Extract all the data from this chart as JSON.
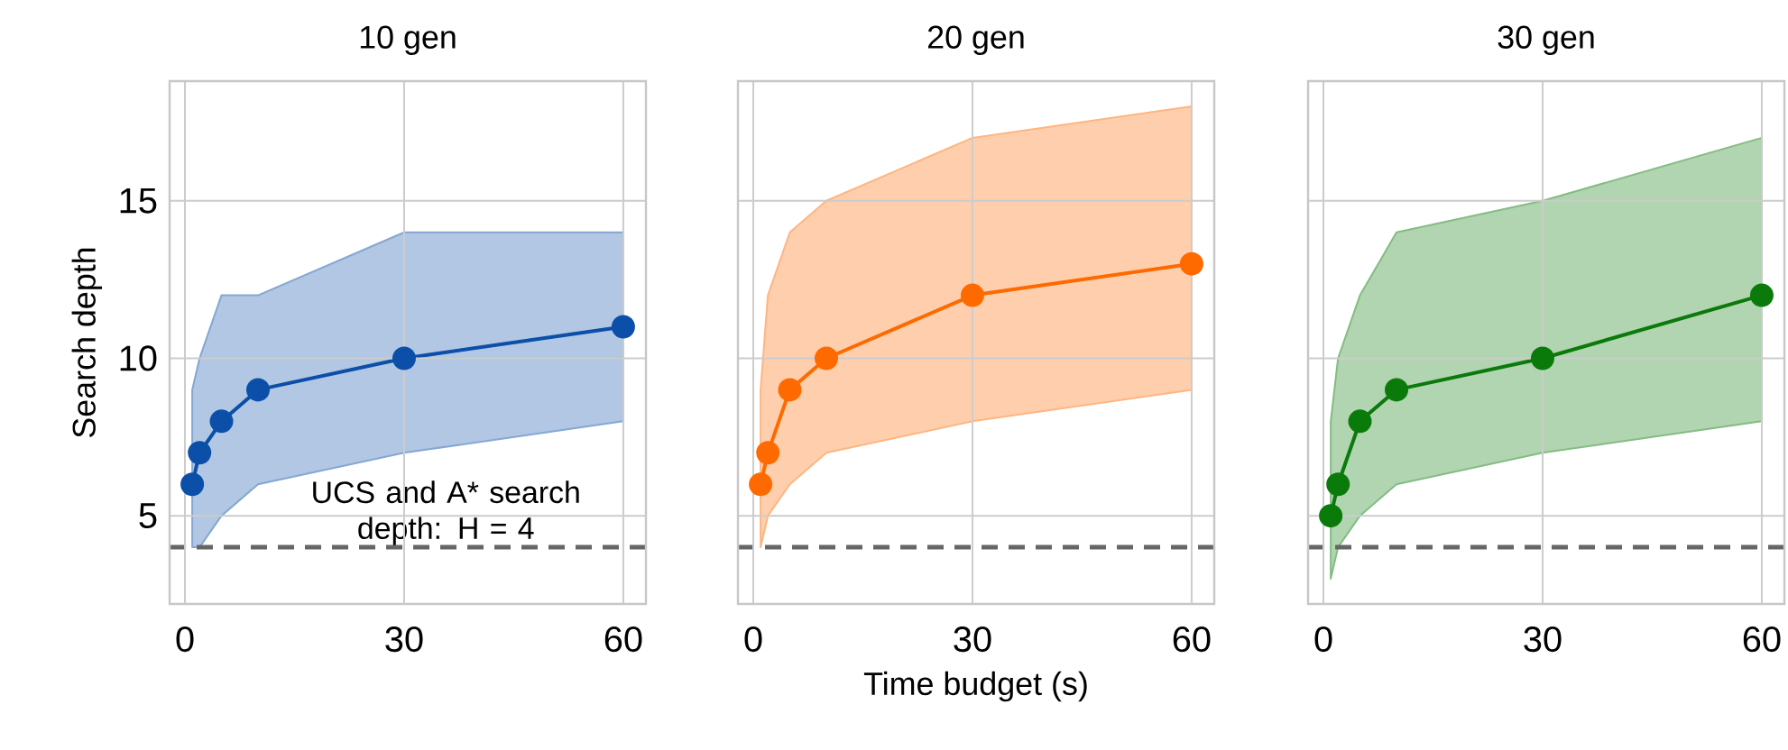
{
  "chart_data": [
    {
      "type": "line",
      "title": "10 gen",
      "ylabel": "Search depth",
      "x": [
        1,
        2,
        5,
        10,
        30,
        60
      ],
      "xlim": [
        -2.1,
        63.1
      ],
      "ylim": [
        2.2,
        18.8
      ],
      "xticks": [
        0,
        30,
        60
      ],
      "yticks": [
        5,
        10,
        15
      ],
      "grid": true,
      "marker": "circle",
      "series": [
        {
          "color": "#0b4fa8",
          "values": [
            6,
            7,
            8,
            9,
            10,
            11
          ],
          "lower": [
            4,
            4,
            5,
            6,
            7,
            8
          ],
          "upper": [
            9,
            10,
            12,
            12,
            14,
            14
          ]
        }
      ],
      "ref_lines": [
        {
          "axis": "y",
          "value": 4,
          "label": "UCS and A* search depth: H = 4",
          "color": "#666666",
          "line_style": "dashed"
        }
      ]
    },
    {
      "type": "line",
      "title": "20 gen",
      "xlabel": "Time budget (s)",
      "x": [
        1,
        2,
        5,
        10,
        30,
        60
      ],
      "xlim": [
        -2.1,
        63.1
      ],
      "ylim": [
        2.2,
        18.8
      ],
      "xticks": [
        0,
        30,
        60
      ],
      "yticks": [
        5,
        10,
        15
      ],
      "grid": true,
      "marker": "circle",
      "tick_labels": "x",
      "series": [
        {
          "color": "#ff6a00",
          "values": [
            6,
            7,
            9,
            10,
            12,
            13
          ],
          "lower": [
            4,
            5,
            6,
            7,
            8,
            9
          ],
          "upper": [
            9,
            12,
            14,
            15,
            17,
            18
          ]
        }
      ],
      "ref_lines": [
        {
          "axis": "y",
          "value": 4,
          "color": "#666666",
          "line_style": "dashed"
        }
      ]
    },
    {
      "type": "line",
      "title": "30 gen",
      "x": [
        1,
        2,
        5,
        10,
        30,
        60
      ],
      "xlim": [
        -2.1,
        63.1
      ],
      "ylim": [
        2.2,
        18.8
      ],
      "xticks": [
        0,
        30,
        60
      ],
      "yticks": [
        5,
        10,
        15
      ],
      "grid": true,
      "marker": "circle",
      "tick_labels": "x",
      "series": [
        {
          "color": "#0a7a0a",
          "values": [
            5,
            6,
            8,
            9,
            10,
            12
          ],
          "lower": [
            3,
            4,
            5,
            6,
            7,
            8
          ],
          "upper": [
            8,
            10,
            12,
            14,
            15,
            17
          ]
        }
      ],
      "ref_lines": [
        {
          "axis": "y",
          "value": 4,
          "color": "#666666",
          "line_style": "dashed"
        }
      ]
    }
  ]
}
